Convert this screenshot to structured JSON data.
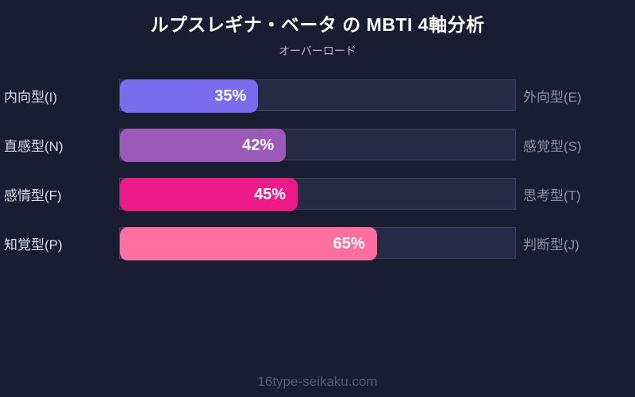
{
  "title": "ルプスレギナ・ベータ の MBTI 4軸分析",
  "subtitle": "オーバーロード",
  "footer": "16type-seikaku.com",
  "colors": {
    "background": "#1a1c32",
    "track_fill": "#262a45",
    "track_border": "#3e4263",
    "title_text": "#ffffff",
    "subtitle_text": "#c2b0c8",
    "left_label_text": "#dcdee8",
    "right_label_text": "#8b90a6",
    "footer_text": "#565b73"
  },
  "chart_data": {
    "type": "bar",
    "orientation": "horizontal",
    "xlim": [
      0,
      100
    ],
    "grid": false,
    "legend": false,
    "title": "ルプスレギナ・ベータ の MBTI 4軸分析",
    "subtitle": "オーバーロード",
    "rows": [
      {
        "left_label": "内向型(I)",
        "right_label": "外向型(E)",
        "value": 35,
        "display": "35%",
        "color": "#7b6bef"
      },
      {
        "left_label": "直感型(N)",
        "right_label": "感覚型(S)",
        "value": 42,
        "display": "42%",
        "color": "#9b59b8"
      },
      {
        "left_label": "感情型(F)",
        "right_label": "思考型(T)",
        "value": 45,
        "display": "45%",
        "color": "#ec1a87"
      },
      {
        "left_label": "知覚型(P)",
        "right_label": "判断型(J)",
        "value": 65,
        "display": "65%",
        "color": "#fd6f9e"
      }
    ]
  }
}
